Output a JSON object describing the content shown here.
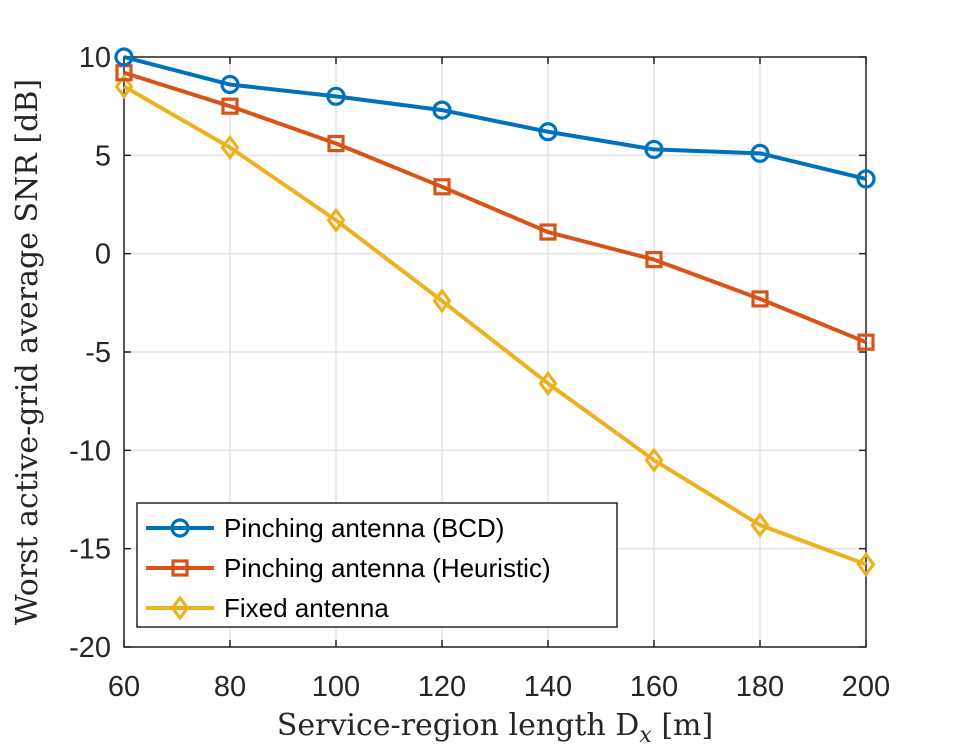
{
  "chart_data": {
    "type": "line",
    "xlabel": "Service-region length D",
    "xlabel_sub": "x",
    "xlabel_unit": " [m]",
    "ylabel": "Worst active-grid average SNR [dB]",
    "xlim": [
      60,
      200
    ],
    "ylim": [
      -20,
      10
    ],
    "xticks": [
      "60",
      "80",
      "100",
      "120",
      "140",
      "160",
      "180",
      "200"
    ],
    "yticks": [
      "10",
      "5",
      "0",
      "-5",
      "-10",
      "-15",
      "-20"
    ],
    "grid": true,
    "legend_position": "bottom-left",
    "x": [
      60,
      80,
      100,
      120,
      140,
      160,
      180,
      200
    ],
    "series": [
      {
        "name": "Pinching antenna (BCD)",
        "color": "#0072BD",
        "marker": "circle",
        "values": [
          10.0,
          8.6,
          8.0,
          7.3,
          6.2,
          5.3,
          5.1,
          3.8
        ]
      },
      {
        "name": "Pinching antenna (Heuristic)",
        "color": "#D95319",
        "marker": "square",
        "values": [
          9.2,
          7.5,
          5.6,
          3.4,
          1.1,
          -0.3,
          -2.3,
          -4.5
        ]
      },
      {
        "name": "Fixed antenna",
        "color": "#EDB120",
        "marker": "diamond",
        "values": [
          8.5,
          5.4,
          1.7,
          -2.4,
          -6.6,
          -10.5,
          -13.8,
          -15.8
        ]
      }
    ]
  }
}
